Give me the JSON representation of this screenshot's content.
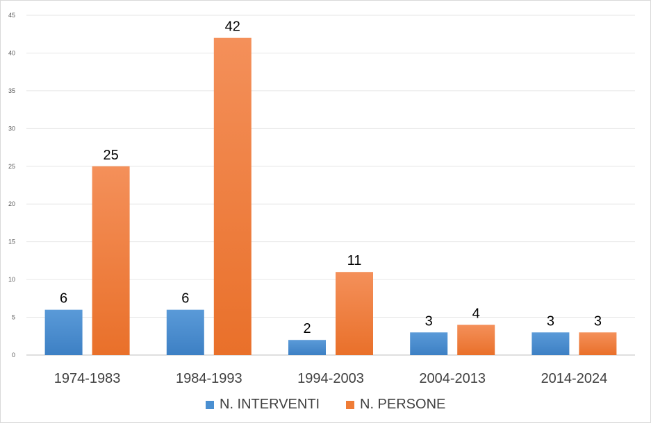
{
  "chart_data": {
    "type": "bar",
    "title": "",
    "xlabel": "",
    "ylabel": "",
    "categories": [
      "1974-1983",
      "1984-1993",
      "1994-2003",
      "2004-2013",
      "2014-2024"
    ],
    "series": [
      {
        "name": "N. INTERVENTI",
        "values": [
          6,
          6,
          2,
          3,
          3
        ],
        "color": "#4a8fd1"
      },
      {
        "name": "N. PERSONE",
        "values": [
          25,
          42,
          11,
          4,
          3
        ],
        "color": "#ef7c36"
      }
    ],
    "ylim": [
      0,
      45
    ],
    "yticks": [
      0,
      5,
      10,
      15,
      20,
      25,
      30,
      35,
      40,
      45
    ],
    "grid": true,
    "legend_position": "bottom",
    "data_labels": true
  }
}
